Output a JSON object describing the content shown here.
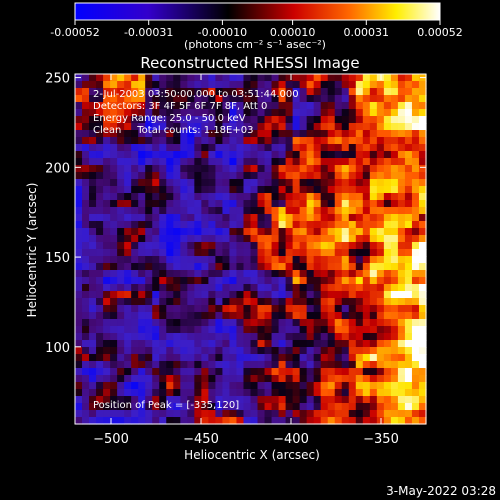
{
  "colorbar": {
    "tick_labels": [
      "-0.00052",
      "-0.00031",
      "-0.00010",
      "0.00010",
      "0.00031",
      "0.00052"
    ],
    "tick_values": [
      -0.00052,
      -0.00031,
      -0.0001,
      0.0001,
      0.00031,
      0.00052
    ],
    "range": [
      -0.00052,
      0.00052
    ],
    "unit_label": "(photons cm⁻² s⁻¹ asec⁻²)",
    "colors": [
      "#0000ff",
      "#000000",
      "#ff0000",
      "#ffff00",
      "#ffffff"
    ]
  },
  "chart_data": {
    "type": "heatmap",
    "title": "Reconstructed RHESSI Image",
    "xlabel": "Heliocentric X (arcsec)",
    "ylabel": "Heliocentric Y (arcsec)",
    "xlim": [
      -520,
      -325
    ],
    "ylim": [
      57,
      252
    ],
    "x_ticks": [
      -500,
      -450,
      -400,
      -350
    ],
    "y_ticks": [
      100,
      150,
      200,
      250
    ],
    "x_tick_labels": [
      "−500",
      "−450",
      "−400",
      "−350"
    ],
    "y_tick_labels": [
      "100",
      "150",
      "200",
      "250"
    ],
    "peak_position": [
      -335,
      120
    ],
    "annotations": [
      "2-Jul-2003 03:50:00.000 to 03:51:44.000",
      "Detectors: 3F 4F 5F 6F 7F 8F, Att 0",
      "Energy Range: 25.0 - 50.0 keV",
      "Clean     Total counts: 1.18E+03",
      "Position of Peak = [-335,120]"
    ]
  },
  "footer": {
    "timestamp": "3-May-2022 03:28"
  }
}
